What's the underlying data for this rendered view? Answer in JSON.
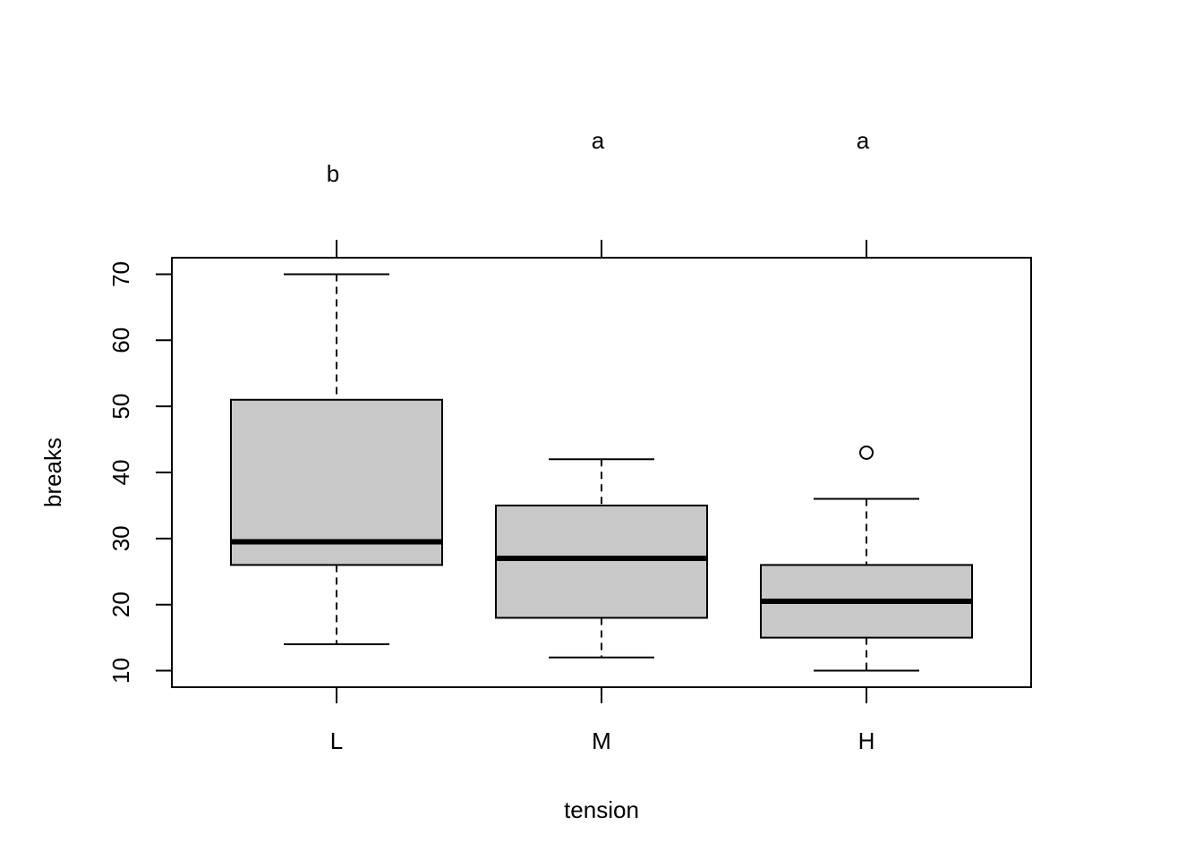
{
  "chart_data": {
    "type": "boxplot",
    "xlabel": "tension",
    "ylabel": "breaks",
    "categories": [
      "L",
      "M",
      "H"
    ],
    "ylim": [
      7.5,
      72.5
    ],
    "yticks": [
      10,
      20,
      30,
      40,
      50,
      60,
      70
    ],
    "box_fill": "#c8c8c8",
    "boxes": [
      {
        "category": "L",
        "min": 14,
        "q1": 26,
        "median": 29.5,
        "q3": 51,
        "max": 70,
        "outliers": []
      },
      {
        "category": "M",
        "min": 12,
        "q1": 18,
        "median": 27,
        "q3": 35,
        "max": 42,
        "outliers": []
      },
      {
        "category": "H",
        "min": 10,
        "q1": 15,
        "median": 20.5,
        "q3": 26,
        "max": 36,
        "outliers": [
          43
        ]
      }
    ],
    "group_letters": [
      "b",
      "a",
      "a"
    ]
  }
}
